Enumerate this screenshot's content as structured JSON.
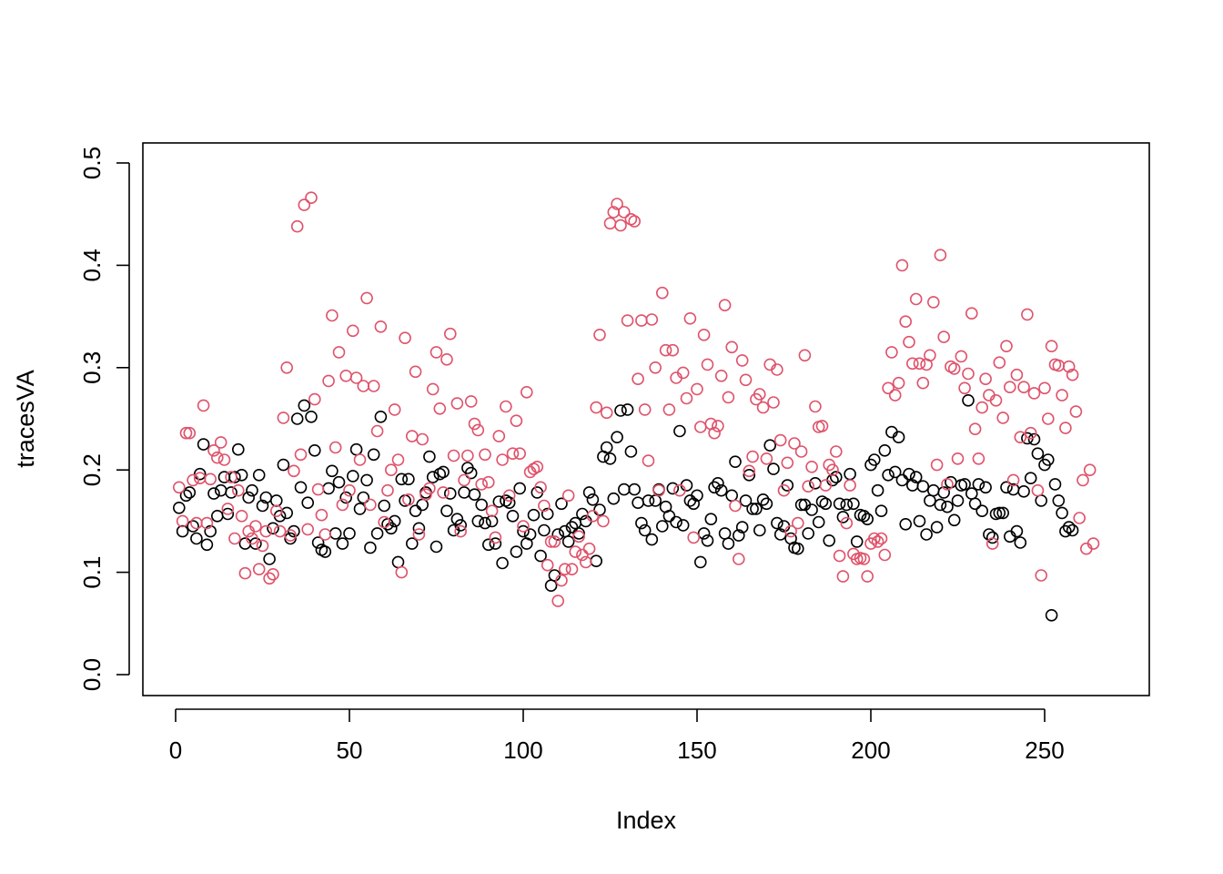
{
  "chart_data": {
    "type": "scatter",
    "title": "",
    "xlabel": "Index",
    "ylabel": "tracesVA",
    "xlim": [
      0,
      270
    ],
    "ylim": [
      0.0,
      0.5
    ],
    "x_ticks": [
      0,
      50,
      100,
      150,
      200,
      250
    ],
    "y_ticks": [
      0.0,
      0.1,
      0.2,
      0.3,
      0.4,
      0.5
    ],
    "x_tick_labels": [
      "0",
      "50",
      "100",
      "150",
      "200",
      "250"
    ],
    "y_tick_labels": [
      "0.0",
      "0.1",
      "0.2",
      "0.3",
      "0.4",
      "0.5"
    ],
    "grid": false,
    "legend": "none",
    "marker": "open-circle",
    "series": [
      {
        "color": "#000000",
        "values": [
          0.163,
          0.14,
          0.175,
          0.178,
          0.145,
          0.133,
          0.196,
          0.225,
          0.127,
          0.14,
          0.177,
          0.155,
          0.18,
          0.193,
          0.157,
          0.178,
          0.193,
          0.22,
          0.195,
          0.128,
          0.173,
          0.18,
          0.128,
          0.195,
          0.165,
          0.173,
          0.113,
          0.143,
          0.17,
          0.155,
          0.205,
          0.158,
          0.133,
          0.14,
          0.25,
          0.183,
          0.263,
          0.168,
          0.252,
          0.219,
          0.129,
          0.122,
          0.12,
          0.182,
          0.199,
          0.138,
          0.188,
          0.128,
          0.173,
          0.138,
          0.194,
          0.22,
          0.162,
          0.173,
          0.19,
          0.124,
          0.215,
          0.138,
          0.252,
          0.165,
          0.147,
          0.143,
          0.15,
          0.11,
          0.191,
          0.17,
          0.191,
          0.128,
          0.16,
          0.143,
          0.166,
          0.178,
          0.213,
          0.193,
          0.125,
          0.196,
          0.198,
          0.16,
          0.177,
          0.141,
          0.152,
          0.146,
          0.178,
          0.202,
          0.197,
          0.176,
          0.15,
          0.166,
          0.148,
          0.127,
          0.15,
          0.128,
          0.169,
          0.109,
          0.17,
          0.168,
          0.155,
          0.12,
          0.182,
          0.14,
          0.128,
          0.137,
          0.156,
          0.178,
          0.116,
          0.141,
          0.157,
          0.087,
          0.097,
          0.137,
          0.167,
          0.14,
          0.13,
          0.144,
          0.148,
          0.138,
          0.157,
          0.15,
          0.178,
          0.171,
          0.111,
          0.161,
          0.213,
          0.222,
          0.211,
          0.172,
          0.232,
          0.258,
          0.181,
          0.259,
          0.218,
          0.181,
          0.168,
          0.148,
          0.141,
          0.17,
          0.132,
          0.17,
          0.181,
          0.145,
          0.164,
          0.155,
          0.182,
          0.149,
          0.238,
          0.146,
          0.185,
          0.17,
          0.167,
          0.175,
          0.11,
          0.138,
          0.131,
          0.152,
          0.183,
          0.187,
          0.18,
          0.138,
          0.128,
          0.175,
          0.208,
          0.136,
          0.144,
          0.17,
          0.195,
          0.162,
          0.162,
          0.141,
          0.171,
          0.167,
          0.224,
          0.201,
          0.148,
          0.137,
          0.145,
          0.185,
          0.133,
          0.124,
          0.123,
          0.166,
          0.166,
          0.138,
          0.161,
          0.187,
          0.149,
          0.169,
          0.167,
          0.131,
          0.19,
          0.193,
          0.167,
          0.154,
          0.166,
          0.196,
          0.167,
          0.13,
          0.156,
          0.155,
          0.152,
          0.205,
          0.21,
          0.18,
          0.16,
          0.219,
          0.195,
          0.237,
          0.198,
          0.232,
          0.19,
          0.147,
          0.196,
          0.185,
          0.193,
          0.15,
          0.184,
          0.137,
          0.17,
          0.18,
          0.144,
          0.166,
          0.178,
          0.164,
          0.188,
          0.151,
          0.17,
          0.185,
          0.186,
          0.268,
          0.177,
          0.167,
          0.186,
          0.16,
          0.183,
          0.137,
          0.134,
          0.157,
          0.158,
          0.158,
          0.183,
          0.135,
          0.181,
          0.14,
          0.129,
          0.179,
          0.231,
          0.192,
          0.23,
          0.216,
          0.17,
          0.205,
          0.21,
          0.058,
          0.186,
          0.17,
          0.158,
          0.14,
          0.144,
          0.141
        ]
      },
      {
        "color": "#df536b",
        "values": [
          0.183,
          0.15,
          0.236,
          0.236,
          0.19,
          0.148,
          0.192,
          0.263,
          0.148,
          0.191,
          0.219,
          0.212,
          0.227,
          0.21,
          0.162,
          0.193,
          0.133,
          0.18,
          0.155,
          0.099,
          0.14,
          0.133,
          0.145,
          0.103,
          0.126,
          0.14,
          0.094,
          0.098,
          0.16,
          0.14,
          0.251,
          0.3,
          0.136,
          0.199,
          0.438,
          0.215,
          0.459,
          0.142,
          0.466,
          0.269,
          0.181,
          0.156,
          0.137,
          0.287,
          0.351,
          0.222,
          0.315,
          0.166,
          0.292,
          0.18,
          0.336,
          0.29,
          0.21,
          0.282,
          0.368,
          0.166,
          0.282,
          0.238,
          0.34,
          0.149,
          0.18,
          0.2,
          0.259,
          0.21,
          0.1,
          0.329,
          0.171,
          0.233,
          0.296,
          0.137,
          0.23,
          0.176,
          0.182,
          0.279,
          0.315,
          0.26,
          0.178,
          0.308,
          0.333,
          0.214,
          0.265,
          0.14,
          0.19,
          0.214,
          0.267,
          0.245,
          0.239,
          0.186,
          0.215,
          0.188,
          0.16,
          0.134,
          0.233,
          0.21,
          0.262,
          0.175,
          0.216,
          0.248,
          0.216,
          0.145,
          0.276,
          0.198,
          0.201,
          0.203,
          0.183,
          0.165,
          0.107,
          0.13,
          0.13,
          0.072,
          0.092,
          0.103,
          0.175,
          0.103,
          0.12,
          0.135,
          0.117,
          0.11,
          0.123,
          0.155,
          0.261,
          0.332,
          0.15,
          0.256,
          0.441,
          0.452,
          0.46,
          0.439,
          0.452,
          0.346,
          0.445,
          0.443,
          0.289,
          0.346,
          0.259,
          0.209,
          0.347,
          0.3,
          0.18,
          0.373,
          0.317,
          0.259,
          0.317,
          0.29,
          0.18,
          0.295,
          0.27,
          0.348,
          0.134,
          0.279,
          0.242,
          0.332,
          0.303,
          0.245,
          0.236,
          0.243,
          0.292,
          0.361,
          0.271,
          0.32,
          0.165,
          0.113,
          0.307,
          0.288,
          0.199,
          0.213,
          0.269,
          0.274,
          0.261,
          0.211,
          0.303,
          0.266,
          0.298,
          0.229,
          0.18,
          0.207,
          0.14,
          0.226,
          0.148,
          0.218,
          0.312,
          0.184,
          0.203,
          0.262,
          0.242,
          0.243,
          0.185,
          0.205,
          0.2,
          0.218,
          0.116,
          0.096,
          0.148,
          0.185,
          0.118,
          0.113,
          0.114,
          0.113,
          0.096,
          0.128,
          0.133,
          0.13,
          0.133,
          0.117,
          0.28,
          0.315,
          0.273,
          0.285,
          0.4,
          0.345,
          0.325,
          0.304,
          0.367,
          0.304,
          0.285,
          0.303,
          0.312,
          0.364,
          0.205,
          0.41,
          0.33,
          0.186,
          0.301,
          0.299,
          0.211,
          0.311,
          0.28,
          0.294,
          0.353,
          0.24,
          0.211,
          0.261,
          0.289,
          0.273,
          0.128,
          0.268,
          0.305,
          0.251,
          0.321,
          0.281,
          0.19,
          0.293,
          0.232,
          0.281,
          0.352,
          0.236,
          0.275,
          0.18,
          0.097,
          0.28,
          0.25,
          0.321,
          0.303,
          0.302,
          0.273,
          0.241,
          0.301,
          0.293,
          0.257,
          0.153,
          0.19,
          0.123,
          0.2,
          0.128
        ]
      }
    ]
  }
}
